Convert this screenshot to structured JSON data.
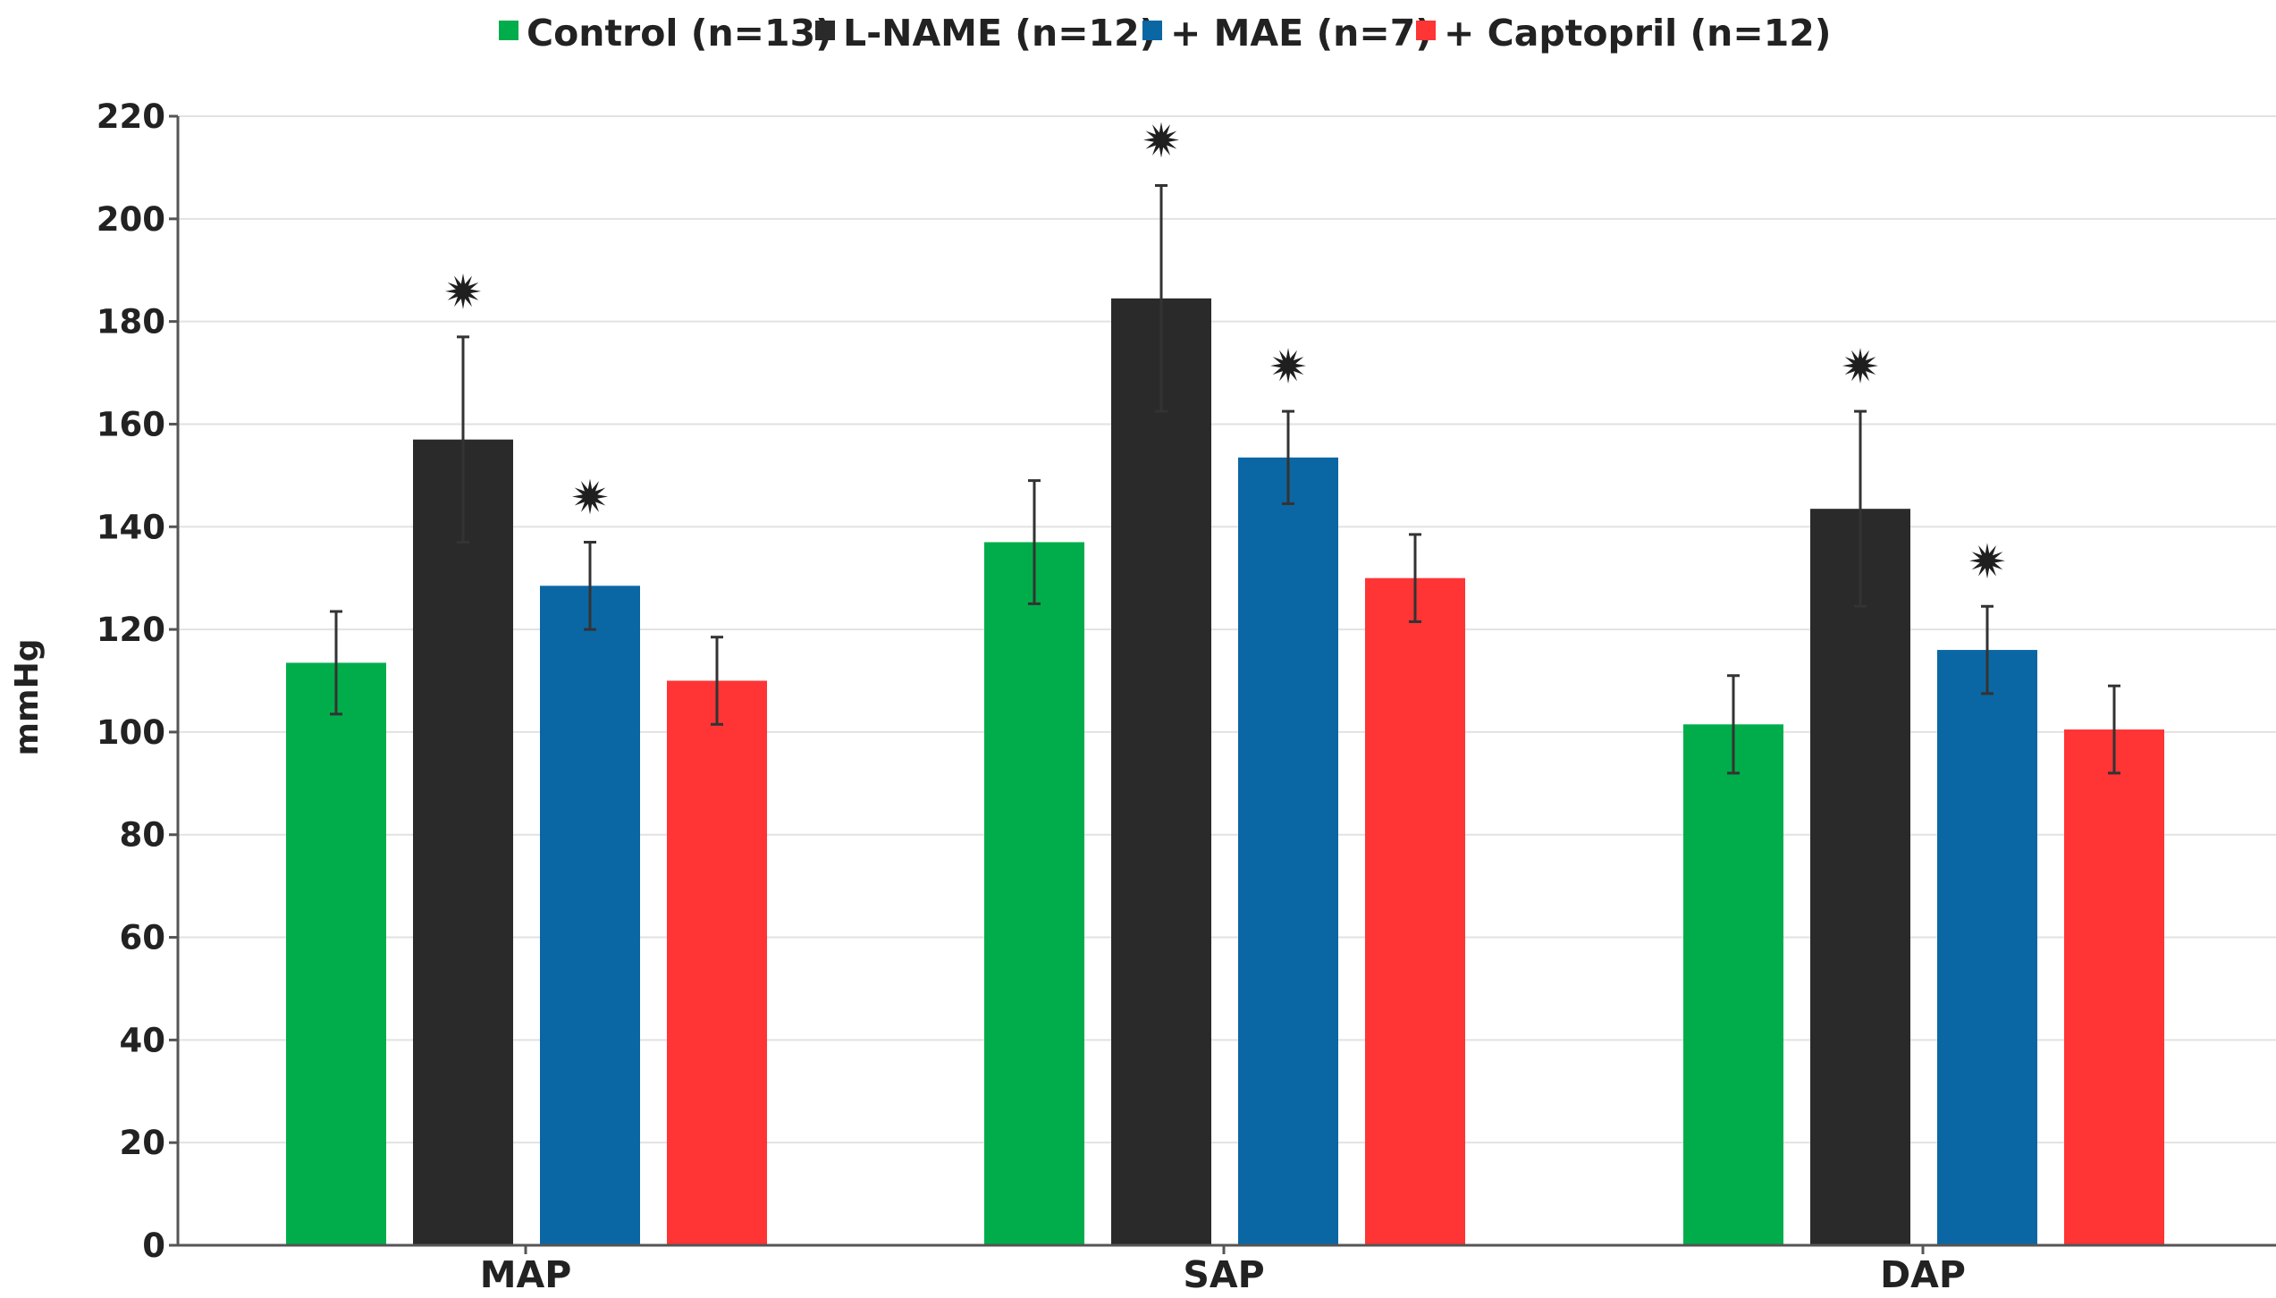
{
  "chart_data": {
    "type": "bar",
    "title": "",
    "xlabel": "",
    "ylabel": "mmHg",
    "ylim": [
      0,
      220
    ],
    "y_ticks": [
      0,
      20,
      40,
      60,
      80,
      100,
      120,
      140,
      160,
      180,
      200,
      220
    ],
    "grid": true,
    "legend_position": "top-center",
    "categories": [
      "MAP",
      "SAP",
      "DAP"
    ],
    "series": [
      {
        "name": "Control (n=13)",
        "color": "#00ad4a",
        "values": [
          113.5,
          137.0,
          101.5
        ],
        "errors": [
          10.0,
          12.0,
          9.5
        ],
        "significant": [
          false,
          false,
          false
        ]
      },
      {
        "name": "L-NAME (n=12)",
        "color": "#2a2a2a",
        "values": [
          157.0,
          184.5,
          143.5
        ],
        "errors": [
          20.0,
          22.0,
          19.0
        ],
        "significant": [
          true,
          true,
          true
        ]
      },
      {
        "name": "+ MAE (n=7)",
        "color": "#0b67a3",
        "values": [
          128.5,
          153.5,
          116.0
        ],
        "errors": [
          8.5,
          9.0,
          8.5
        ],
        "significant": [
          true,
          true,
          true
        ]
      },
      {
        "name": "+ Captopril (n=12)",
        "color": "#fe3435",
        "values": [
          110.0,
          130.0,
          100.5
        ],
        "errors": [
          8.5,
          8.5,
          8.5
        ],
        "significant": [
          false,
          false,
          false
        ]
      }
    ]
  }
}
